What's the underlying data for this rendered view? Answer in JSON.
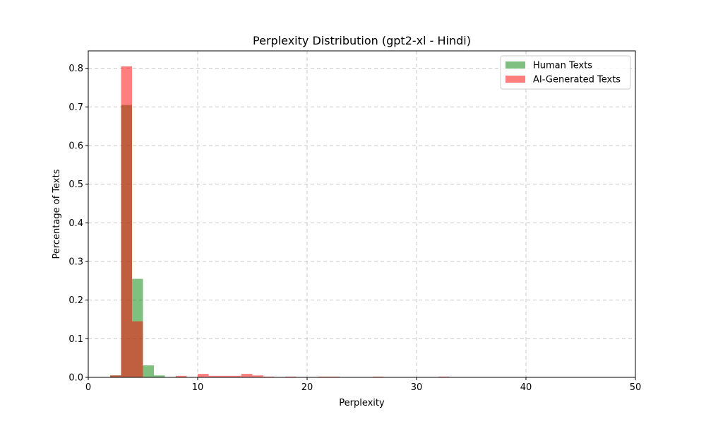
{
  "chart_data": {
    "type": "bar",
    "title": "Perplexity Distribution (gpt2-xl - Hindi)",
    "xlabel": "Perplexity",
    "ylabel": "Percentage of Texts",
    "xlim": [
      0,
      50
    ],
    "ylim": [
      0,
      0.845
    ],
    "xticks": [
      "0",
      "10",
      "20",
      "30",
      "40",
      "50"
    ],
    "yticks": [
      "0.0",
      "0.1",
      "0.2",
      "0.3",
      "0.4",
      "0.5",
      "0.6",
      "0.7",
      "0.8"
    ],
    "grid": true,
    "legend_position": "top-right",
    "bin_width": 1,
    "series": [
      {
        "name": "Human Texts",
        "color": "#008000",
        "opacity": 0.5,
        "bins": [
          {
            "x0": 2,
            "x1": 3,
            "value": 0.005
          },
          {
            "x0": 3,
            "x1": 4,
            "value": 0.705
          },
          {
            "x0": 4,
            "x1": 5,
            "value": 0.255
          },
          {
            "x0": 5,
            "x1": 6,
            "value": 0.031
          },
          {
            "x0": 6,
            "x1": 7,
            "value": 0.005
          }
        ]
      },
      {
        "name": "AI-Generated Texts",
        "color": "#ff0000",
        "opacity": 0.5,
        "bins": [
          {
            "x0": 2,
            "x1": 3,
            "value": 0.005
          },
          {
            "x0": 3,
            "x1": 4,
            "value": 0.805
          },
          {
            "x0": 4,
            "x1": 5,
            "value": 0.145
          },
          {
            "x0": 8,
            "x1": 9,
            "value": 0.004
          },
          {
            "x0": 10,
            "x1": 11,
            "value": 0.009
          },
          {
            "x0": 11,
            "x1": 12,
            "value": 0.004
          },
          {
            "x0": 12,
            "x1": 13,
            "value": 0.004
          },
          {
            "x0": 13,
            "x1": 14,
            "value": 0.004
          },
          {
            "x0": 14,
            "x1": 15,
            "value": 0.009
          },
          {
            "x0": 15,
            "x1": 16,
            "value": 0.005
          },
          {
            "x0": 16,
            "x1": 17,
            "value": 0.002
          },
          {
            "x0": 18,
            "x1": 19,
            "value": 0.002
          },
          {
            "x0": 21,
            "x1": 22,
            "value": 0.002
          },
          {
            "x0": 22,
            "x1": 23,
            "value": 0.002
          },
          {
            "x0": 26,
            "x1": 27,
            "value": 0.002
          },
          {
            "x0": 32,
            "x1": 33,
            "value": 0.002
          }
        ]
      }
    ]
  }
}
